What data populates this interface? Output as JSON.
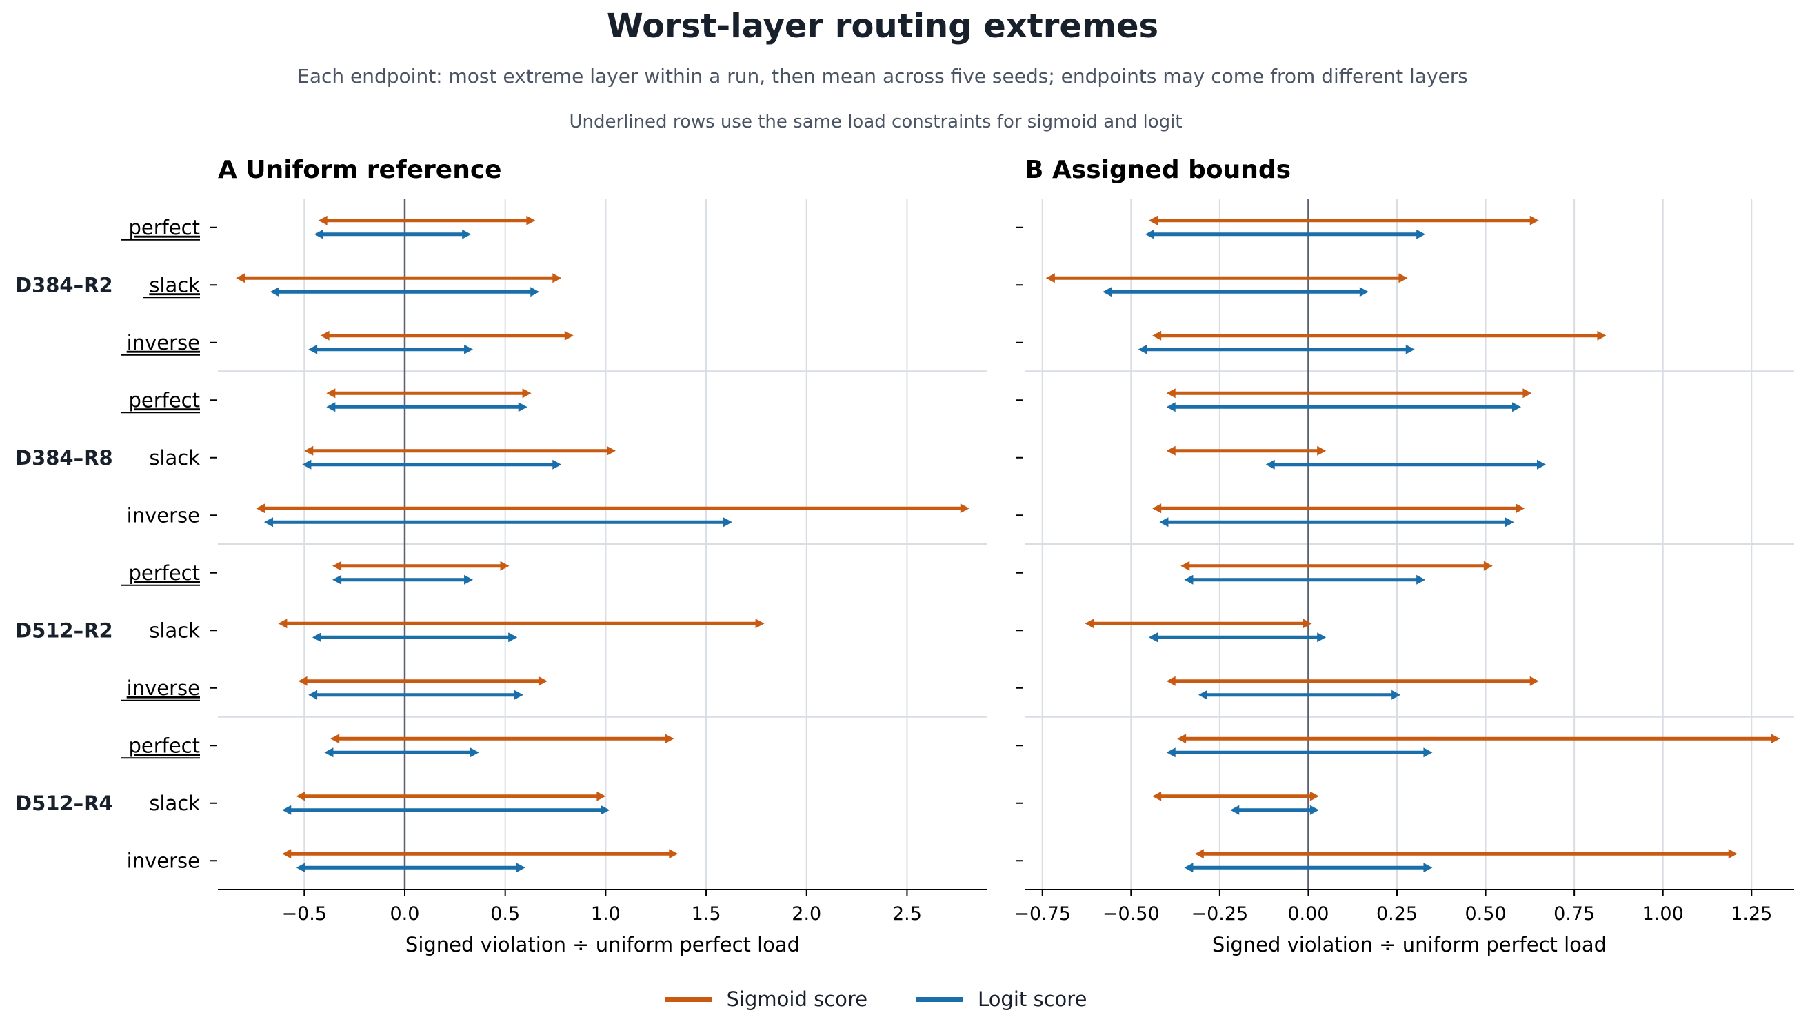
{
  "figure": {
    "title": "Worst-layer routing extremes",
    "subtitle": "Each endpoint: most extreme layer within a run, then mean across five seeds; endpoints may come from different layers",
    "note": "Underlined rows use the same load constraints for sigmoid and logit",
    "legend": [
      {
        "label": "Sigmoid score",
        "color": "#c85a12"
      },
      {
        "label": "Logit score",
        "color": "#1a6faa"
      }
    ],
    "colors": {
      "sigmoid": "#c85a12",
      "logit": "#1a6faa",
      "zero_line": "#5a6270",
      "grid": "#d9dde4",
      "text": "#18202b"
    }
  },
  "chart_data": [
    {
      "type": "range",
      "panel_label": "A",
      "title": "Uniform reference",
      "xlabel": "Signed violation ÷ uniform perfect load",
      "xlim": [
        -0.93,
        2.9
      ],
      "xticks": [
        -0.5,
        0.0,
        0.5,
        1.0,
        1.5,
        2.0,
        2.5
      ],
      "xtick_labels": [
        "−0.5",
        "0.0",
        "0.5",
        "1.0",
        "1.5",
        "2.0",
        "2.5"
      ],
      "grid": true,
      "groups": [
        {
          "name": "D384–R2",
          "rows": [
            {
              "label": "perfect",
              "underlined": true,
              "sigmoid": [
                -0.43,
                0.65
              ],
              "logit": [
                -0.45,
                0.33
              ]
            },
            {
              "label": "slack",
              "underlined": true,
              "sigmoid": [
                -0.84,
                0.78
              ],
              "logit": [
                -0.67,
                0.67
              ]
            },
            {
              "label": "inverse",
              "underlined": true,
              "sigmoid": [
                -0.42,
                0.84
              ],
              "logit": [
                -0.48,
                0.34
              ]
            }
          ]
        },
        {
          "name": "D384–R8",
          "rows": [
            {
              "label": "perfect",
              "underlined": true,
              "sigmoid": [
                -0.39,
                0.63
              ],
              "logit": [
                -0.39,
                0.61
              ]
            },
            {
              "label": "slack",
              "underlined": false,
              "sigmoid": [
                -0.5,
                1.05
              ],
              "logit": [
                -0.51,
                0.78
              ]
            },
            {
              "label": "inverse",
              "underlined": false,
              "sigmoid": [
                -0.74,
                2.81
              ],
              "logit": [
                -0.7,
                1.63
              ]
            }
          ]
        },
        {
          "name": "D512–R2",
          "rows": [
            {
              "label": "perfect",
              "underlined": true,
              "sigmoid": [
                -0.36,
                0.52
              ],
              "logit": [
                -0.36,
                0.34
              ]
            },
            {
              "label": "slack",
              "underlined": false,
              "sigmoid": [
                -0.63,
                1.79
              ],
              "logit": [
                -0.46,
                0.56
              ]
            },
            {
              "label": "inverse",
              "underlined": true,
              "sigmoid": [
                -0.53,
                0.71
              ],
              "logit": [
                -0.48,
                0.59
              ]
            }
          ]
        },
        {
          "name": "D512–R4",
          "rows": [
            {
              "label": "perfect",
              "underlined": true,
              "sigmoid": [
                -0.37,
                1.34
              ],
              "logit": [
                -0.4,
                0.37
              ]
            },
            {
              "label": "slack",
              "underlined": false,
              "sigmoid": [
                -0.54,
                1.0
              ],
              "logit": [
                -0.61,
                1.02
              ]
            },
            {
              "label": "inverse",
              "underlined": false,
              "sigmoid": [
                -0.61,
                1.36
              ],
              "logit": [
                -0.54,
                0.6
              ]
            }
          ]
        }
      ]
    },
    {
      "type": "range",
      "panel_label": "B",
      "title": "Assigned bounds",
      "xlabel": "Signed violation ÷ uniform perfect load",
      "xlim": [
        -0.8,
        1.37
      ],
      "xticks": [
        -0.75,
        -0.5,
        -0.25,
        0.0,
        0.25,
        0.5,
        0.75,
        1.0,
        1.25
      ],
      "xtick_labels": [
        "−0.75",
        "−0.50",
        "−0.25",
        "0.00",
        "0.25",
        "0.50",
        "0.75",
        "1.00",
        "1.25"
      ],
      "grid": true,
      "groups": [
        {
          "name": "D384–R2",
          "rows": [
            {
              "label": "perfect",
              "sigmoid": [
                -0.45,
                0.65
              ],
              "logit": [
                -0.46,
                0.33
              ]
            },
            {
              "label": "slack",
              "sigmoid": [
                -0.74,
                0.28
              ],
              "logit": [
                -0.58,
                0.17
              ]
            },
            {
              "label": "inverse",
              "sigmoid": [
                -0.44,
                0.84
              ],
              "logit": [
                -0.48,
                0.3
              ]
            }
          ]
        },
        {
          "name": "D384–R8",
          "rows": [
            {
              "label": "perfect",
              "sigmoid": [
                -0.4,
                0.63
              ],
              "logit": [
                -0.4,
                0.6
              ]
            },
            {
              "label": "slack",
              "sigmoid": [
                -0.4,
                0.05
              ],
              "logit": [
                -0.12,
                0.67
              ]
            },
            {
              "label": "inverse",
              "sigmoid": [
                -0.44,
                0.61
              ],
              "logit": [
                -0.42,
                0.58
              ]
            }
          ]
        },
        {
          "name": "D512–R2",
          "rows": [
            {
              "label": "perfect",
              "sigmoid": [
                -0.36,
                0.52
              ],
              "logit": [
                -0.35,
                0.33
              ]
            },
            {
              "label": "slack",
              "sigmoid": [
                -0.63,
                0.01
              ],
              "logit": [
                -0.45,
                0.05
              ]
            },
            {
              "label": "inverse",
              "sigmoid": [
                -0.4,
                0.65
              ],
              "logit": [
                -0.31,
                0.26
              ]
            }
          ]
        },
        {
          "name": "D512–R4",
          "rows": [
            {
              "label": "perfect",
              "sigmoid": [
                -0.37,
                1.33
              ],
              "logit": [
                -0.4,
                0.35
              ]
            },
            {
              "label": "slack",
              "sigmoid": [
                -0.44,
                0.03
              ],
              "logit": [
                -0.22,
                0.03
              ]
            },
            {
              "label": "inverse",
              "sigmoid": [
                -0.32,
                1.21
              ],
              "logit": [
                -0.35,
                0.35
              ]
            }
          ]
        }
      ]
    }
  ]
}
